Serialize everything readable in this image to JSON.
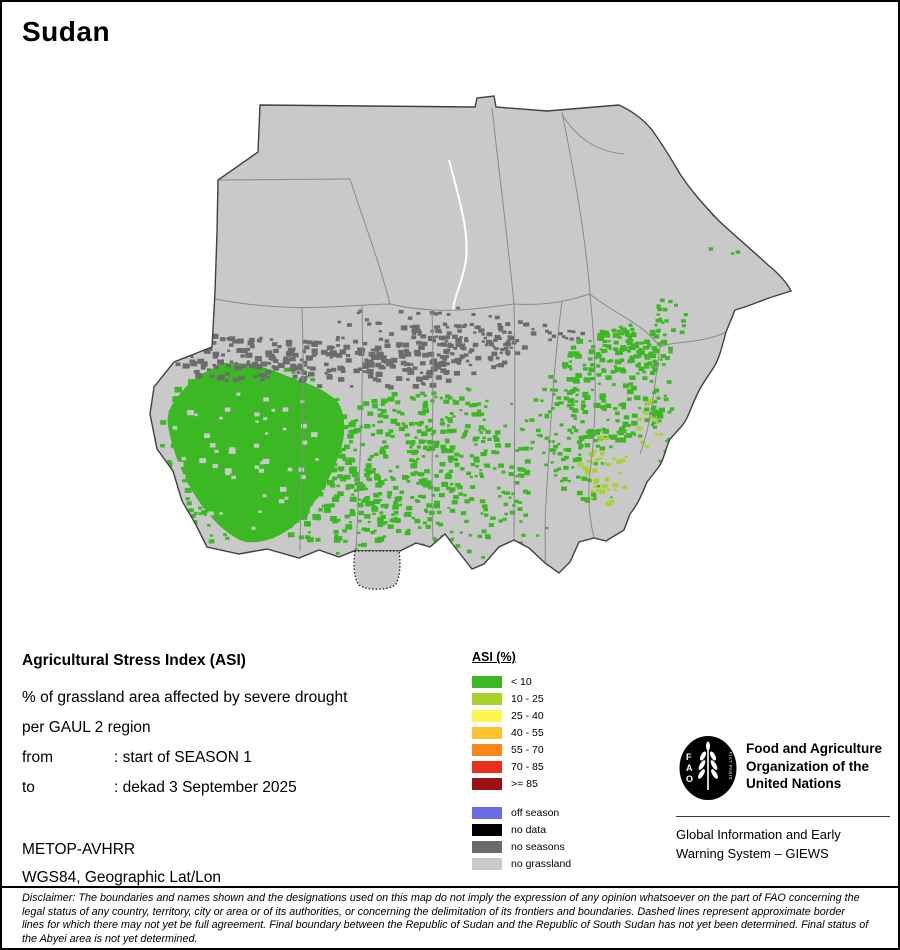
{
  "page": {
    "title": "Sudan"
  },
  "info": {
    "heading": "Agricultural Stress Index (ASI)",
    "subtitle_line1": "% of grassland area affected by severe drought",
    "subtitle_line2": "per GAUL 2 region",
    "from_label": "from",
    "from_value": ": start of SEASON 1",
    "to_label": "to",
    "to_value": ": dekad 3 September 2025",
    "sensor": "METOP-AVHRR",
    "projection": "WGS84, Geographic Lat/Lon"
  },
  "legend": {
    "title": "ASI (%)",
    "classes": [
      {
        "label": "< 10",
        "color": "#3bb823"
      },
      {
        "label": "10 - 25",
        "color": "#a9d32a"
      },
      {
        "label": "25 - 40",
        "color": "#fcf651"
      },
      {
        "label": "40 - 55",
        "color": "#fcc32d"
      },
      {
        "label": "55 - 70",
        "color": "#f8871c"
      },
      {
        "label": "70 - 85",
        "color": "#ed2e18"
      },
      {
        "label": ">= 85",
        "color": "#9b1014"
      }
    ],
    "extra": [
      {
        "label": "off season",
        "color": "#6b6be6"
      },
      {
        "label": "no data",
        "color": "#000000"
      },
      {
        "label": "no seasons",
        "color": "#6c6c6c"
      },
      {
        "label": "no grassland",
        "color": "#c9c9c9"
      }
    ]
  },
  "footer": {
    "fao_letters": [
      "F",
      "A",
      "O"
    ],
    "fao_motto": "FIAT PANIS",
    "org_lines": [
      "Food and Agriculture",
      "Organization of the",
      "United Nations"
    ],
    "giews_lines": [
      "Global Information and Early",
      "Warning System – GIEWS"
    ]
  },
  "disclaimer": "Disclaimer: The boundaries and names shown and the designations used on this map do not imply the expression of any opinion whatsoever on the part of FAO concerning the legal status of any country, territory, city or area or of its authorities, or concerning the delimitation of its frontiers and boundaries. Dashed lines represent approximate border lines for which there may not yet be full agreement. Final boundary between the Republic of Sudan and the Republic of South Sudan has not yet been determined. Final status of the Abyei area is not yet determined."
}
